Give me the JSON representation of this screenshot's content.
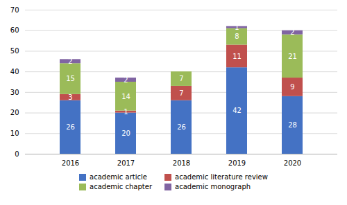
{
  "chart_data": {
    "type": "bar",
    "stacked": true,
    "categories": [
      "2016",
      "2017",
      "2018",
      "2019",
      "2020"
    ],
    "series": [
      {
        "name": "academic article",
        "color": "#4472C4",
        "values": [
          26,
          20,
          26,
          42,
          28
        ]
      },
      {
        "name": "academic literature review",
        "color": "#C0504D",
        "values": [
          3,
          1,
          7,
          11,
          9
        ]
      },
      {
        "name": "academic chapter",
        "color": "#9BBB59",
        "values": [
          15,
          14,
          7,
          8,
          21
        ]
      },
      {
        "name": "academic monograph",
        "color": "#8064A2",
        "values": [
          2,
          2,
          0,
          1,
          2
        ]
      }
    ],
    "ylim": [
      0,
      70
    ],
    "yticks": [
      0,
      10,
      20,
      30,
      40,
      50,
      60,
      70
    ],
    "grid": true,
    "data_labels": true,
    "legend": "bottom"
  }
}
